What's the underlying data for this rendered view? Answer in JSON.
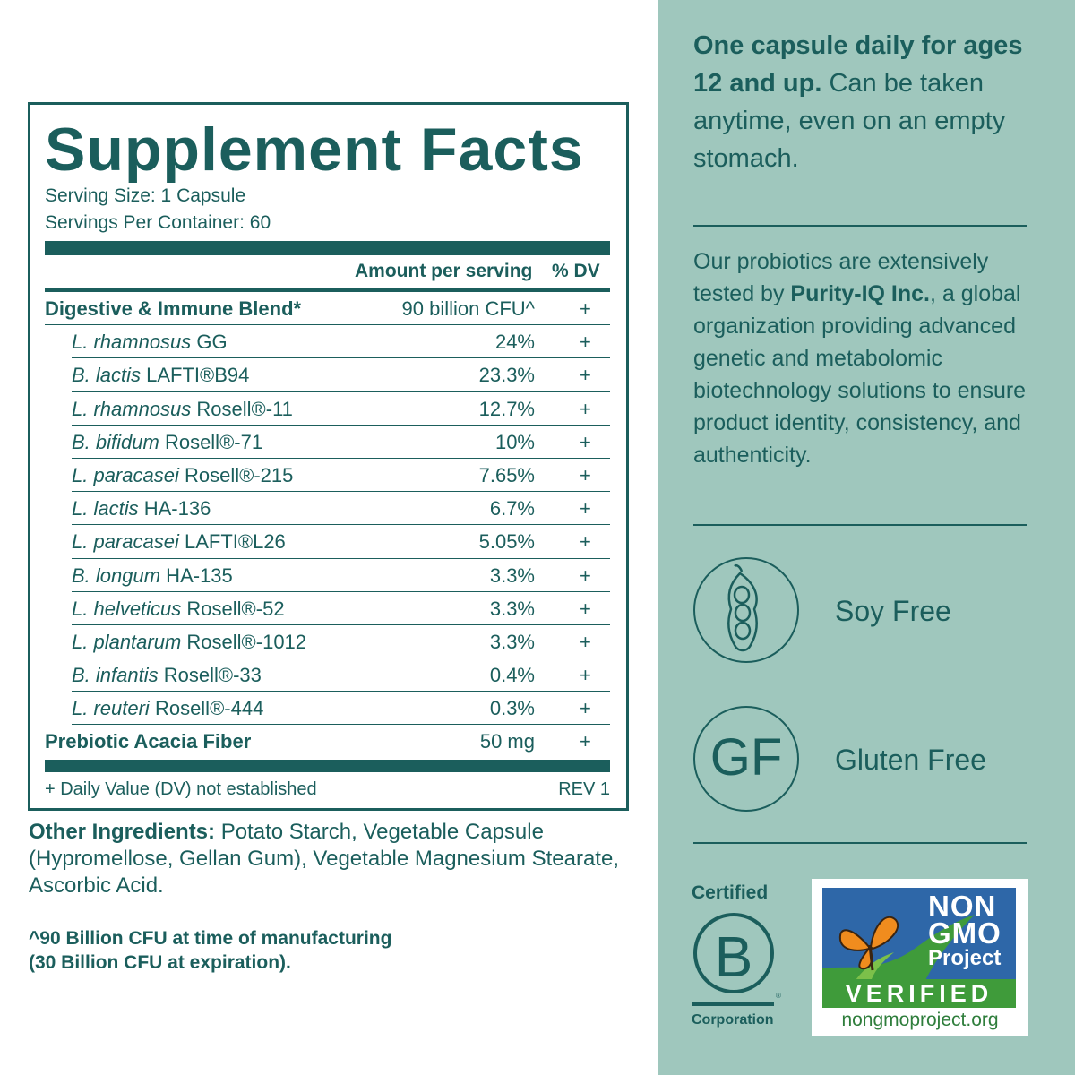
{
  "facts": {
    "title": "Supplement Facts",
    "serving_size": "Serving Size: 1 Capsule",
    "servings_per_container": "Servings Per Container: 60",
    "col_amount": "Amount per serving",
    "col_dv": "% DV",
    "rows": [
      {
        "italic": "",
        "name": "Digestive & Immune Blend*",
        "amount": "90 billion CFU^",
        "dv": "+"
      },
      {
        "italic": "L. rhamnosus",
        "name": " GG",
        "amount": "24%",
        "dv": "+"
      },
      {
        "italic": "B. lactis",
        "name": " LAFTI®B94",
        "amount": "23.3%",
        "dv": "+"
      },
      {
        "italic": "L. rhamnosus",
        "name": " Rosell®-11",
        "amount": "12.7%",
        "dv": "+"
      },
      {
        "italic": "B. bifidum",
        "name": " Rosell®-71",
        "amount": "10%",
        "dv": "+"
      },
      {
        "italic": "L. paracasei",
        "name": " Rosell®-215",
        "amount": "7.65%",
        "dv": "+"
      },
      {
        "italic": "L. lactis",
        "name": " HA-136",
        "amount": "6.7%",
        "dv": "+"
      },
      {
        "italic": "L. paracasei",
        "name": " LAFTI®L26",
        "amount": "5.05%",
        "dv": "+"
      },
      {
        "italic": "B. longum",
        "name": " HA-135",
        "amount": "3.3%",
        "dv": "+"
      },
      {
        "italic": "L. helveticus",
        "name": " Rosell®-52",
        "amount": "3.3%",
        "dv": "+"
      },
      {
        "italic": "L. plantarum",
        "name": " Rosell®-1012",
        "amount": "3.3%",
        "dv": "+"
      },
      {
        "italic": "B. infantis",
        "name": " Rosell®-33",
        "amount": "0.4%",
        "dv": "+"
      },
      {
        "italic": "L. reuteri",
        "name": " Rosell®-444",
        "amount": "0.3%",
        "dv": "+"
      },
      {
        "italic": "",
        "name": "Prebiotic Acacia Fiber",
        "amount": "50 mg",
        "dv": "+"
      }
    ],
    "dv_footnote": "+ Daily Value (DV) not established",
    "revision": "REV 1"
  },
  "other_ingredients": {
    "label": "Other Ingredients:",
    "text": " Potato Starch, Vegetable Capsule (Hypromellose, Gellan Gum), Vegetable Magnesium Stearate, Ascorbic Acid."
  },
  "cfu_note": {
    "line1": "^90 Billion CFU at time of manufacturing",
    "line2": "(30 Billion CFU at expiration)."
  },
  "dose": {
    "bold": "One capsule daily for ages 12 and up.",
    "text": " Can be taken anytime, even on an empty stomach."
  },
  "purity": {
    "before": "Our probiotics are extensively tested by ",
    "bold": "Purity-IQ Inc.",
    "after": ", a global organization providing advanced genetic and metabolomic biotechnology solutions to ensure product identity, consistency, and authenticity."
  },
  "badges": {
    "soy_label": "Soy Free",
    "gf_symbol": "GF",
    "gf_label": "Gluten Free"
  },
  "bcorp": {
    "certified": "Certified",
    "letter": "B",
    "reg": "®",
    "corporation": "Corporation"
  },
  "nongmo": {
    "word1": "NON",
    "word2": "GMO",
    "word3": "Project",
    "verified": "VERIFIED",
    "url": "nongmoproject.org"
  },
  "colors": {
    "teal": "#1b5e5c",
    "panel_bg": "#9fc7bd",
    "nongmo_blue": "#2e67a8",
    "nongmo_green": "#3f9b3a"
  }
}
